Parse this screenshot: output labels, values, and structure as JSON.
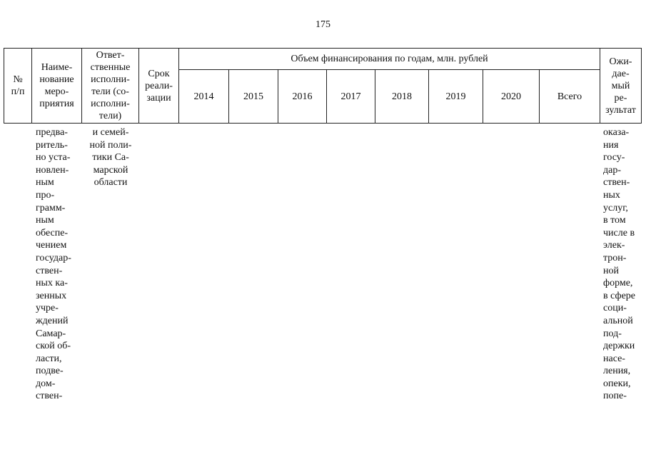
{
  "page_number": "175",
  "header": {
    "num": [
      "№",
      "п/п"
    ],
    "name": [
      "Наиме-",
      "нование",
      "меро-",
      "приятия"
    ],
    "resp": [
      "Ответ-",
      "ственные",
      "исполни-",
      "тели (со-",
      "исполни-",
      "тели)"
    ],
    "term": [
      "Срок",
      "реали-",
      "зации"
    ],
    "funding": "Объем финансирования по годам, млн. рублей",
    "years": [
      "2014",
      "2015",
      "2016",
      "2017",
      "2018",
      "2019",
      "2020",
      "Всего"
    ],
    "result": [
      "Ожи-",
      "дае-",
      "мый",
      "ре-",
      "зультат"
    ]
  },
  "body": {
    "name": [
      "предва-",
      "ритель-",
      "но уста-",
      "новлен-",
      "ным",
      "про-",
      "грамм-",
      "ным",
      "обеспе-",
      "чением",
      "государ-",
      "ствен-",
      "ных ка-",
      "зенных",
      "учре-",
      "ждений",
      "Самар-",
      "ской об-",
      "ласти,",
      "подве-",
      "дом-",
      "ствен-"
    ],
    "resp": [
      "и семей-",
      "ной поли-",
      "тики Са-",
      "марской",
      "области"
    ],
    "result": [
      "оказа-",
      "ния",
      "госу-",
      "дар-",
      "ствен-",
      "ных",
      "услуг,",
      "в том",
      "числе в",
      "элек-",
      "трон-",
      "ной",
      "форме,",
      "в сфере",
      "соци-",
      "альной",
      "под-",
      "держки",
      "насе-",
      "ления,",
      "опеки,",
      "попе-"
    ]
  }
}
